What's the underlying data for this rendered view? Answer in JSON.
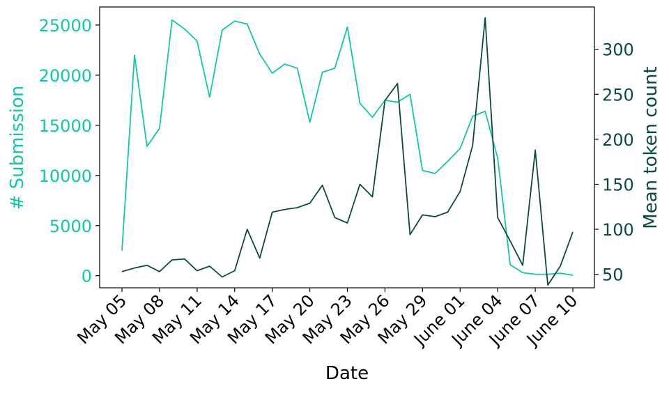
{
  "chart_data": {
    "type": "line",
    "xlabel": "Date",
    "x_tick_labels": [
      "May 05",
      "May 08",
      "May 11",
      "May 14",
      "May 17",
      "May 20",
      "May 23",
      "May 26",
      "May 29",
      "June 01",
      "June 04",
      "June 07",
      "June 10"
    ],
    "x": [
      "May 05",
      "May 06",
      "May 07",
      "May 08",
      "May 09",
      "May 10",
      "May 11",
      "May 12",
      "May 13",
      "May 14",
      "May 15",
      "May 16",
      "May 17",
      "May 18",
      "May 19",
      "May 20",
      "May 21",
      "May 22",
      "May 23",
      "May 24",
      "May 25",
      "May 26",
      "May 27",
      "May 28",
      "May 29",
      "May 30",
      "May 31",
      "June 01",
      "June 02",
      "June 03",
      "June 04",
      "June 05",
      "June 06",
      "June 07",
      "June 08",
      "June 09",
      "June 10"
    ],
    "left_axis": {
      "label": "# Submission",
      "ylim": [
        -1200,
        26800
      ],
      "ticks": [
        0,
        5000,
        10000,
        15000,
        20000,
        25000
      ],
      "color": "#10c8a6"
    },
    "right_axis": {
      "label": "Mean token count",
      "ylim": [
        35,
        347
      ],
      "ticks": [
        50,
        100,
        150,
        200,
        250,
        300
      ],
      "color": "#0b4a40"
    },
    "series": [
      {
        "axis": "left",
        "color": "#10c8a6",
        "values": [
          2500,
          22000,
          12900,
          14700,
          25500,
          24600,
          23400,
          17800,
          24500,
          25400,
          25100,
          22100,
          20200,
          21100,
          20700,
          15300,
          20300,
          20700,
          24800,
          17200,
          15800,
          17500,
          17300,
          18100,
          10500,
          10200,
          11400,
          12700,
          15900,
          16400,
          11700,
          1100,
          300,
          150,
          150,
          250,
          50
        ]
      },
      {
        "axis": "right",
        "color": "#0b4a40",
        "values": [
          53,
          57,
          60,
          53,
          66,
          67,
          54,
          59,
          47,
          54,
          100,
          68,
          119,
          122,
          124,
          129,
          149,
          113,
          107,
          150,
          136,
          243,
          262,
          94,
          116,
          114,
          119,
          142,
          193,
          335,
          113,
          87,
          60,
          188,
          38,
          59,
          97
        ]
      }
    ]
  }
}
